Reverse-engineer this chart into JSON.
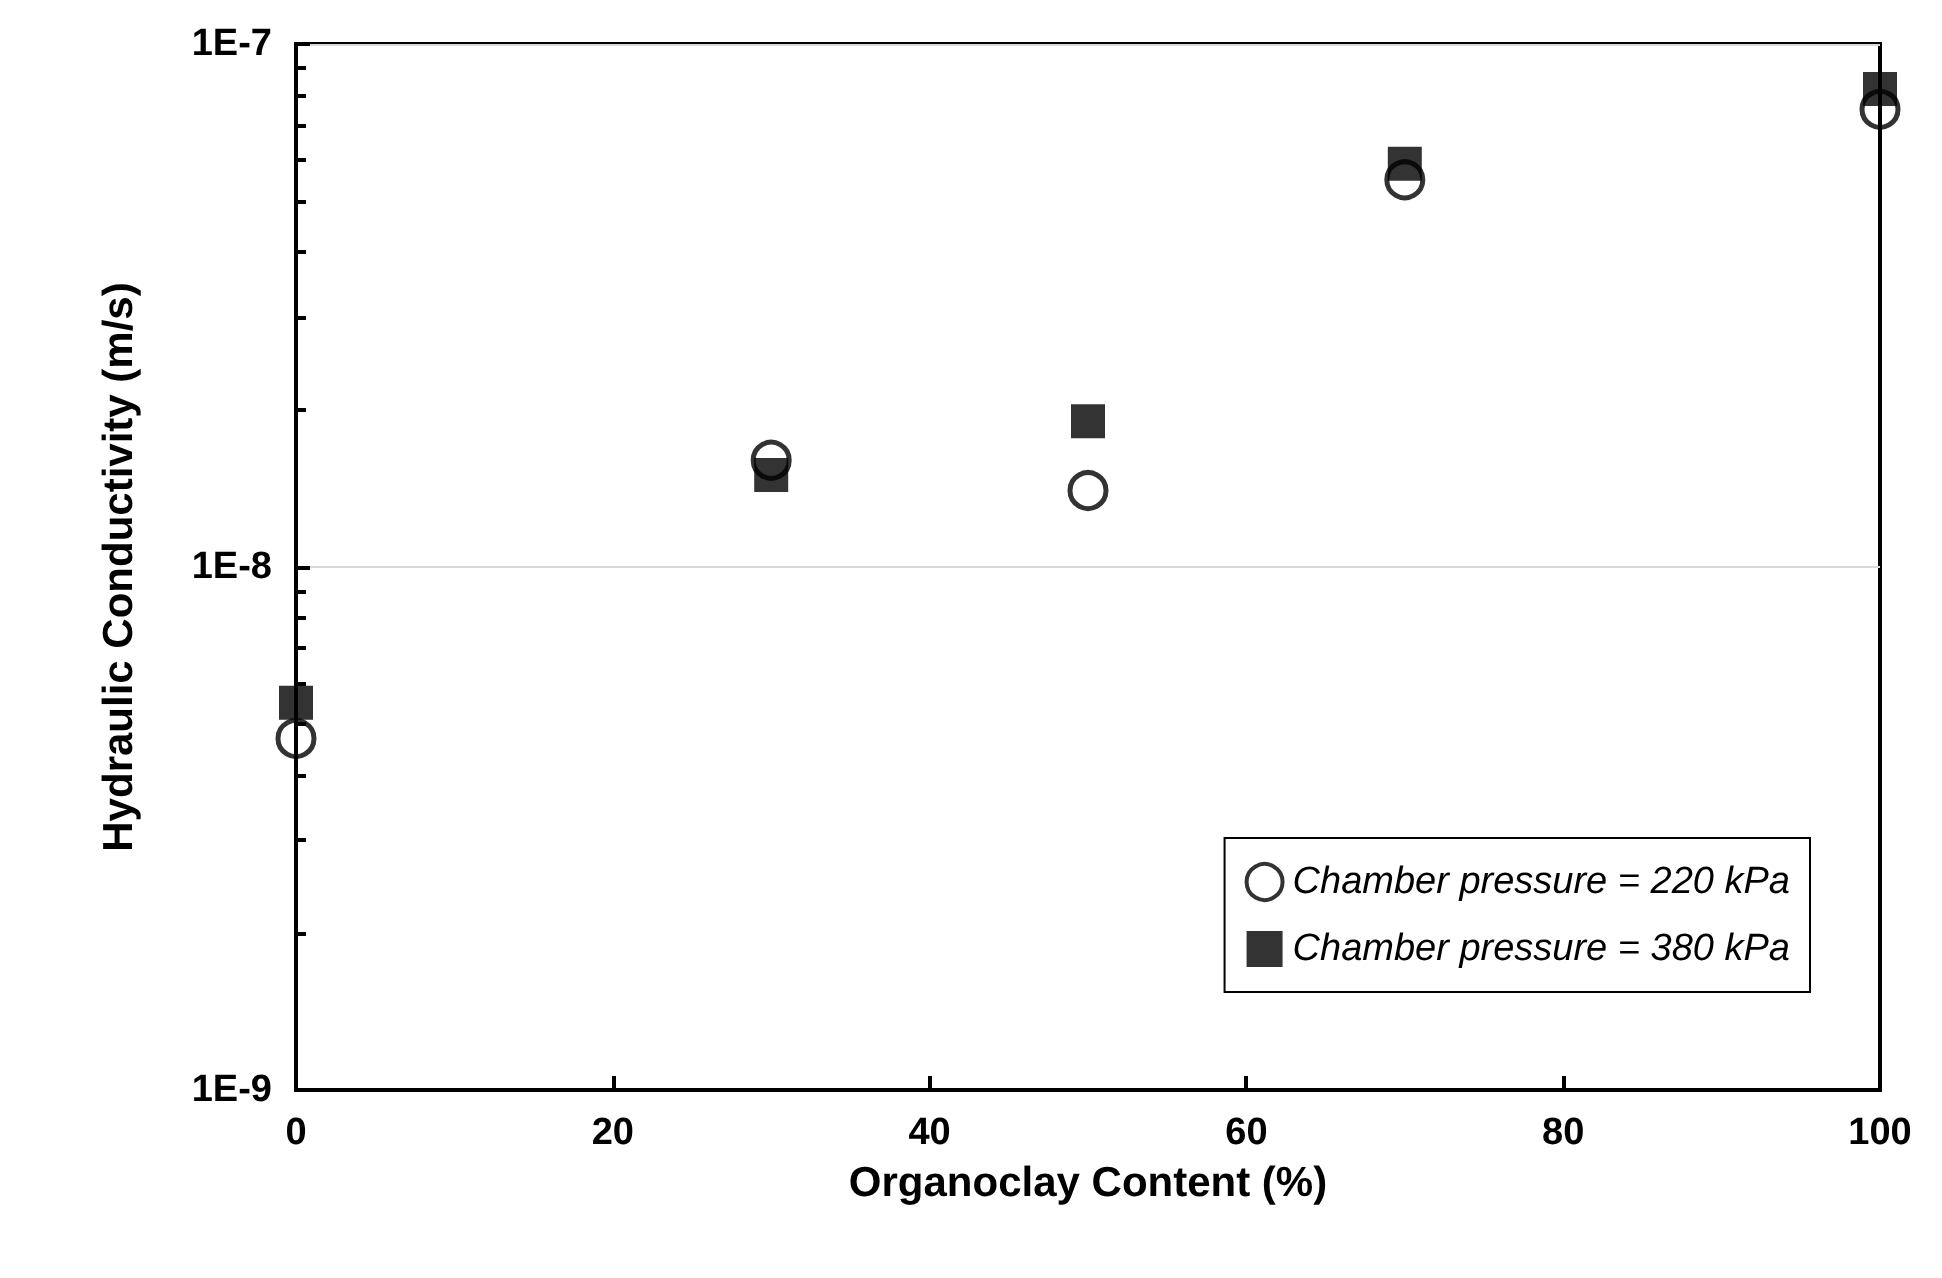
{
  "chart_data": {
    "type": "scatter",
    "xlabel": "Organoclay Content (%)",
    "ylabel": "Hydraulic Conductivity (m/s)",
    "x": [
      0,
      30,
      50,
      70,
      100
    ],
    "series": [
      {
        "name": "Chamber pressure = 220 kPa",
        "color": "#000000",
        "marker": "circle",
        "values": [
          4.7e-09,
          1.6e-08,
          1.4e-08,
          5.5e-08,
          7.5e-08
        ]
      },
      {
        "name": "Chamber pressure = 380 kPa",
        "color": "#000000",
        "marker": "square",
        "values": [
          5.5e-09,
          1.5e-08,
          1.9e-08,
          5.9e-08,
          8.2e-08
        ]
      }
    ],
    "xlim": [
      0,
      100
    ],
    "xticks": [
      0,
      20,
      40,
      60,
      80,
      100
    ],
    "ylim": [
      1e-09,
      1e-07
    ],
    "yticks": [
      {
        "value": 1e-09,
        "label": "1E-9"
      },
      {
        "value": 1e-08,
        "label": "1E-8"
      },
      {
        "value": 1e-07,
        "label": "1E-7"
      }
    ],
    "log": "y",
    "grid": "y",
    "legend": "bottom right"
  }
}
